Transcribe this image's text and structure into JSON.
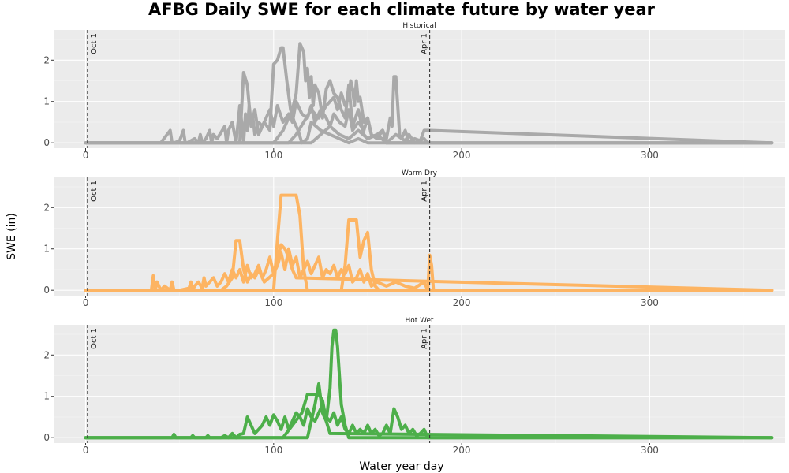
{
  "chart_data": {
    "type": "line",
    "title": "AFBG Daily SWE for each climate future by water year",
    "xlabel": "Water year day",
    "ylabel": "SWE (in)",
    "xlim": [
      -17,
      372
    ],
    "xticks": [
      0,
      100,
      200,
      300
    ],
    "ylim": [
      -0.13,
      2.73
    ],
    "yticks": [
      0,
      1,
      2
    ],
    "grid": true,
    "legend": "none",
    "reference_lines": [
      {
        "x": 1,
        "label": "Oct 1",
        "style": "dashed"
      },
      {
        "x": 183,
        "label": "Apr 1",
        "style": "dashed"
      }
    ],
    "panels": [
      {
        "name": "Historical",
        "color": "#a9a9a9",
        "series": [
          {
            "x": [
              0,
              40,
              45,
              46,
              47,
              50,
              52,
              53,
              54,
              58,
              60,
              61,
              62,
              64,
              66,
              67,
              68,
              70,
              74,
              75,
              76,
              78,
              80,
              82,
              83,
              84,
              85,
              86,
              87,
              88,
              89,
              90,
              92,
              94,
              96,
              98,
              100,
              102,
              105,
              108,
              110,
              112,
              115,
              118,
              120,
              122,
              125,
              128,
              130,
              132,
              135,
              138,
              140,
              142,
              145,
              148,
              150,
              152,
              155,
              158,
              160,
              165,
              170,
              172,
              175,
              180,
              182,
              365
            ],
            "y": [
              0,
              0,
              0.3,
              0,
              0,
              0.05,
              0.3,
              0,
              0,
              0.1,
              0,
              0.2,
              0,
              0.1,
              0.3,
              0,
              0.2,
              0.1,
              0.4,
              0,
              0.3,
              0.5,
              0,
              0.9,
              0.5,
              0,
              0.7,
              0.3,
              0.9,
              0.5,
              0.6,
              0.2,
              0.5,
              0.4,
              0.6,
              0.8,
              0.4,
              0.9,
              0.5,
              0.7,
              0.5,
              1,
              0.7,
              0.6,
              0.9,
              0.5,
              0.8,
              0.6,
              0.4,
              0.7,
              0.5,
              0.4,
              0.8,
              0.3,
              0.5,
              0.3,
              0.6,
              0.2,
              0.1,
              0.3,
              0,
              0.2,
              0.05,
              0.2,
              0,
              0.1,
              0,
              0
            ]
          },
          {
            "x": [
              0,
              82,
              84,
              86,
              88,
              90,
              92,
              95,
              98,
              100,
              102,
              104,
              105,
              107,
              109,
              111,
              113,
              115,
              118,
              120,
              125,
              130,
              135,
              140,
              145,
              150,
              160,
              365
            ],
            "y": [
              0,
              0,
              1.7,
              1.4,
              0.4,
              0.8,
              0.2,
              0.5,
              0.3,
              1.9,
              2,
              2.3,
              2.3,
              1.5,
              0.8,
              0.5,
              0.3,
              0,
              0.1,
              0.5,
              0.3,
              0.2,
              0.1,
              0,
              0.1,
              0,
              0,
              0
            ]
          },
          {
            "x": [
              0,
              100,
              105,
              110,
              112,
              114,
              116,
              117,
              118,
              119,
              120,
              121,
              122,
              124,
              126,
              128,
              130,
              132,
              134,
              136,
              138,
              140,
              142,
              145,
              148,
              150,
              155,
              160,
              365
            ],
            "y": [
              0,
              0,
              0.3,
              0.8,
              1.2,
              2.4,
              2.2,
              1.5,
              1.8,
              1.1,
              1.6,
              0.9,
              1.4,
              1.2,
              0.6,
              1.3,
              1.5,
              1.2,
              1.1,
              0.8,
              0.6,
              1.4,
              0.4,
              0.8,
              0.2,
              0.1,
              0.2,
              0,
              0
            ]
          },
          {
            "x": [
              0,
              108,
              112,
              116,
              120,
              124,
              128,
              132,
              134,
              136,
              138,
              140,
              141,
              142,
              143,
              144,
              145,
              146,
              147,
              148,
              150,
              152,
              155,
              158,
              160,
              365
            ],
            "y": [
              0,
              0,
              0.2,
              0.5,
              0.8,
              0.6,
              0.9,
              1.1,
              0.8,
              1.2,
              0.9,
              1.1,
              1.5,
              1.3,
              0.9,
              1.5,
              1.0,
              1.1,
              0.8,
              0.5,
              0.6,
              0.2,
              0.1,
              0.1,
              0,
              0
            ]
          },
          {
            "x": [
              0,
              120,
              125,
              130,
              135,
              140,
              145,
              150,
              155,
              158,
              160,
              162,
              163,
              164,
              165,
              166,
              167,
              168,
              170,
              172,
              175,
              178,
              180,
              182,
              365
            ],
            "y": [
              0,
              0,
              0.2,
              0.4,
              0.2,
              0.1,
              0.3,
              0.1,
              0.2,
              0.3,
              0.1,
              0.6,
              0.4,
              1.6,
              1.6,
              0.9,
              0.2,
              0.1,
              0.3,
              0,
              0.1,
              0.05,
              0.3,
              0.3,
              0
            ]
          }
        ]
      },
      {
        "name": "Warm Dry",
        "color": "#fdb462",
        "series": [
          {
            "x": [
              0,
              35,
              36,
              37,
              38,
              40,
              42,
              45,
              46,
              47,
              50,
              55,
              56,
              57,
              58,
              60,
              62,
              63,
              64,
              66,
              68,
              70,
              72,
              74,
              76,
              78,
              80,
              82,
              84,
              86,
              88,
              90,
              92,
              94,
              96,
              98,
              100,
              102,
              104,
              106,
              108,
              110,
              112,
              114,
              116,
              118,
              120,
              122,
              124,
              126,
              128,
              130,
              132,
              134,
              136,
              138,
              140,
              142,
              144,
              146,
              148,
              150,
              152,
              155,
              160,
              165,
              170,
              175,
              180,
              182,
              183,
              184,
              185,
              365
            ],
            "y": [
              0,
              0,
              0.35,
              0,
              0.2,
              0,
              0.1,
              0,
              0.2,
              0,
              0,
              0.05,
              0.2,
              0,
              0.1,
              0.2,
              0.05,
              0.3,
              0.1,
              0.2,
              0.3,
              0.1,
              0.2,
              0.4,
              0.2,
              0.5,
              0.3,
              0.5,
              0.2,
              0.6,
              0.3,
              0.4,
              0.6,
              0.3,
              0.5,
              0.8,
              0.4,
              0.6,
              0.9,
              0.5,
              1.0,
              0.6,
              0.8,
              0.3,
              0.5,
              0.7,
              0.4,
              0.6,
              0.8,
              0.3,
              0.5,
              0.4,
              0.6,
              0.3,
              0.5,
              0.4,
              0.6,
              0.2,
              0.3,
              0.5,
              0.2,
              0.4,
              0.1,
              0.2,
              0.1,
              0.2,
              0.1,
              0.05,
              0.2,
              0,
              0.85,
              0.6,
              0,
              0
            ]
          },
          {
            "x": [
              0,
              100,
              102,
              104,
              106,
              110,
              112,
              114,
              116,
              118,
              365
            ],
            "y": [
              0,
              0,
              1.2,
              2.3,
              2.3,
              2.3,
              2.3,
              1.8,
              0.5,
              0,
              0
            ]
          },
          {
            "x": [
              0,
              72,
              75,
              78,
              80,
              82,
              84,
              86,
              88,
              90,
              92,
              95,
              100,
              104,
              106,
              108,
              110,
              112,
              365
            ],
            "y": [
              0,
              0,
              0.1,
              0.3,
              1.2,
              1.2,
              0.5,
              0.2,
              0.4,
              0.3,
              0.5,
              0.2,
              0.4,
              1.1,
              1.0,
              0.8,
              0.5,
              0.3,
              0
            ]
          },
          {
            "x": [
              0,
              136,
              138,
              140,
              142,
              144,
              146,
              148,
              150,
              152,
              154,
              156,
              365
            ],
            "y": [
              0,
              0,
              0.6,
              1.7,
              1.7,
              1.7,
              0.8,
              1.2,
              1.4,
              0.5,
              0.1,
              0,
              0
            ]
          }
        ]
      },
      {
        "name": "Hot Wet",
        "color": "#4daf4a",
        "series": [
          {
            "x": [
              0,
              46,
              47,
              48,
              56,
              57,
              58,
              64,
              65,
              66,
              72,
              74,
              76,
              78,
              80,
              82,
              84,
              86,
              88,
              90,
              92,
              94,
              96,
              98,
              100,
              102,
              104,
              106,
              108,
              110,
              112,
              114,
              116,
              118,
              120,
              122,
              124,
              126,
              128,
              130,
              132,
              134,
              136,
              138,
              140,
              142,
              144,
              146,
              148,
              150,
              152,
              154,
              156,
              158,
              160,
              162,
              164,
              166,
              168,
              170,
              172,
              174,
              176,
              178,
              180,
              182,
              365
            ],
            "y": [
              0,
              0,
              0.08,
              0,
              0,
              0.05,
              0,
              0,
              0.05,
              0,
              0,
              0.05,
              0,
              0.1,
              0,
              0.08,
              0.1,
              0.5,
              0.3,
              0.1,
              0.2,
              0.3,
              0.5,
              0.3,
              0.55,
              0.4,
              0.2,
              0.5,
              0.2,
              0.4,
              0.6,
              0.5,
              0.3,
              0.7,
              0.5,
              0.4,
              0.6,
              0.8,
              0.5,
              0.4,
              0.6,
              0.3,
              0.5,
              0.2,
              0.1,
              0.3,
              0.1,
              0.2,
              0.1,
              0.3,
              0.1,
              0.2,
              0.05,
              0.1,
              0.3,
              0.1,
              0.7,
              0.5,
              0.2,
              0.3,
              0.1,
              0.2,
              0.05,
              0.1,
              0.2,
              0,
              0
            ]
          },
          {
            "x": [
              0,
              105,
              110,
              115,
              118,
              120,
              122,
              124,
              126,
              128,
              130,
              365
            ],
            "y": [
              0,
              0,
              0.3,
              0.6,
              1.05,
              1.05,
              1.05,
              1.05,
              0.9,
              0.4,
              0.1,
              0
            ]
          },
          {
            "x": [
              0,
              118,
              120,
              122,
              124,
              126,
              128,
              130,
              131,
              132,
              133,
              134,
              136,
              138,
              140,
              365
            ],
            "y": [
              0,
              0,
              0.4,
              0.8,
              1.3,
              0.6,
              0.4,
              1.2,
              2.2,
              2.6,
              2.6,
              2.2,
              0.8,
              0.3,
              0,
              0
            ]
          }
        ]
      }
    ]
  }
}
